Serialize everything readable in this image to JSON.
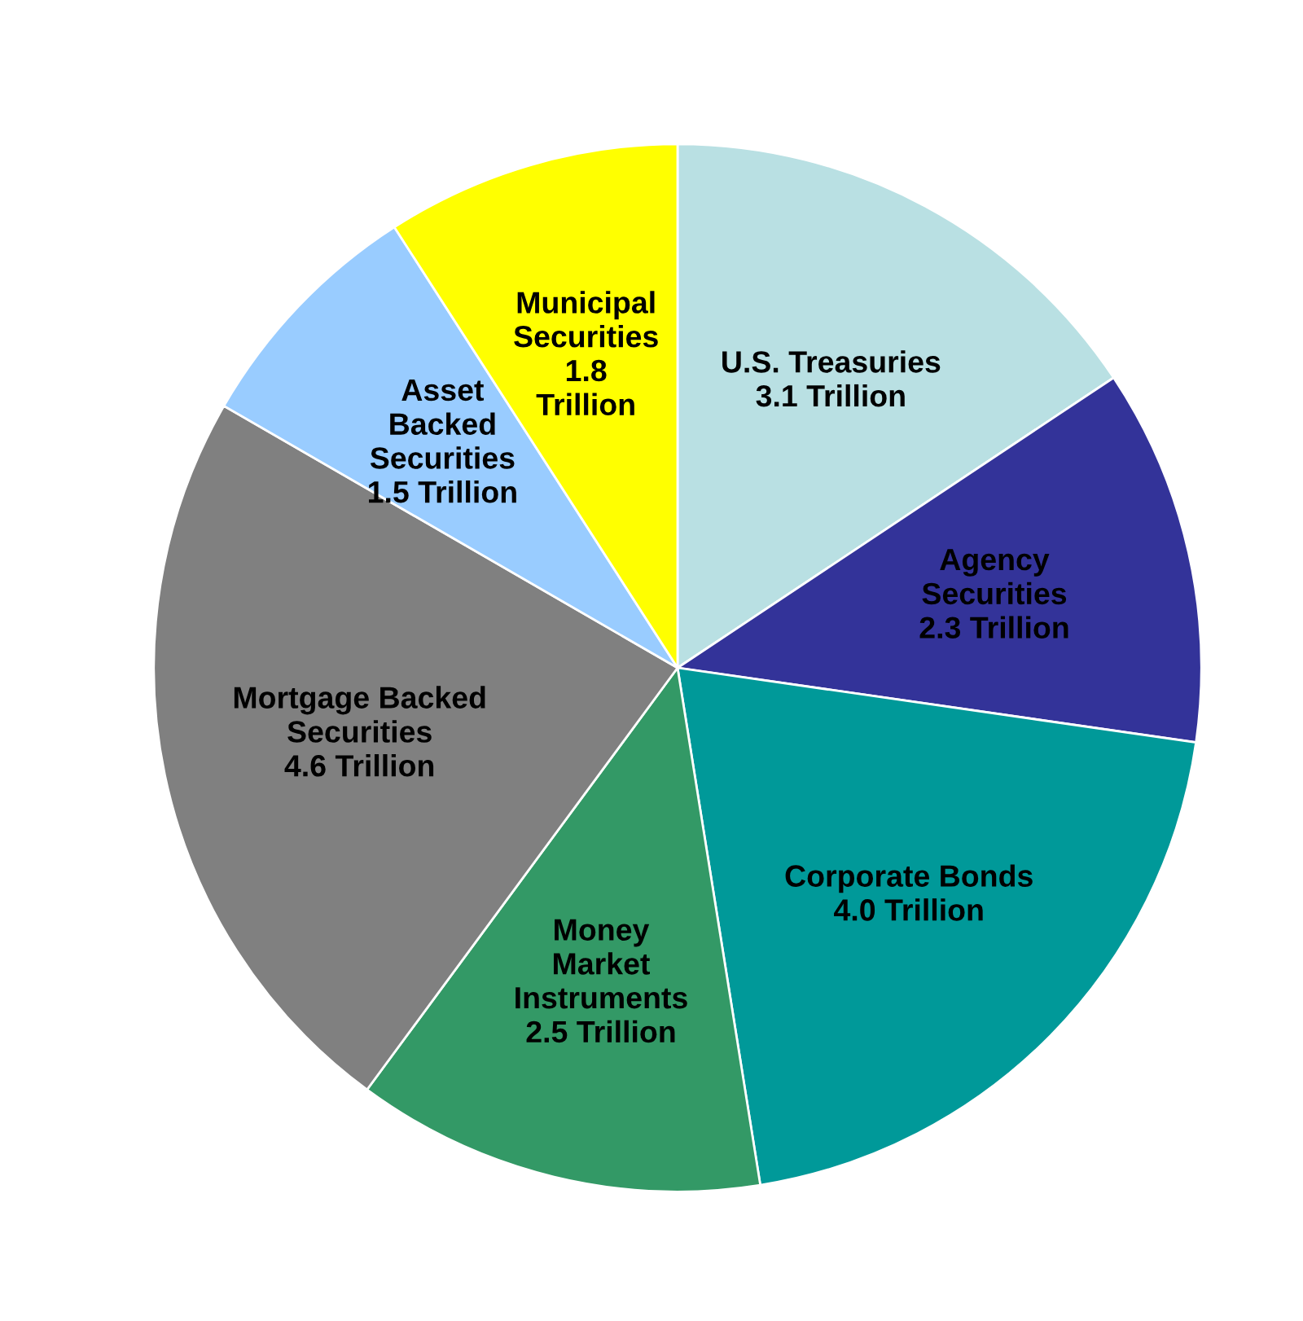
{
  "chart_data": {
    "type": "pie",
    "categories": [
      "U.S. Treasuries",
      "Agency\nSecurities",
      "Corporate Bonds",
      "Money\nMarket\nInstruments",
      "Mortgage Backed\nSecurities",
      "Asset\nBacked\nSecurities",
      "Municipal\nSecurities"
    ],
    "values": [
      3.1,
      2.3,
      4.0,
      2.5,
      4.6,
      1.5,
      1.8
    ],
    "value_labels": [
      "3.1 Trillion",
      "2.3 Trillion",
      "4.0 Trillion",
      "2.5 Trillion",
      "4.6 Trillion",
      "1.5 Trillion",
      "1.8\nTrillion"
    ],
    "colors": [
      "#b9e0e3",
      "#333399",
      "#009999",
      "#339966",
      "#808080",
      "#99ccff",
      "#ffff00"
    ]
  }
}
